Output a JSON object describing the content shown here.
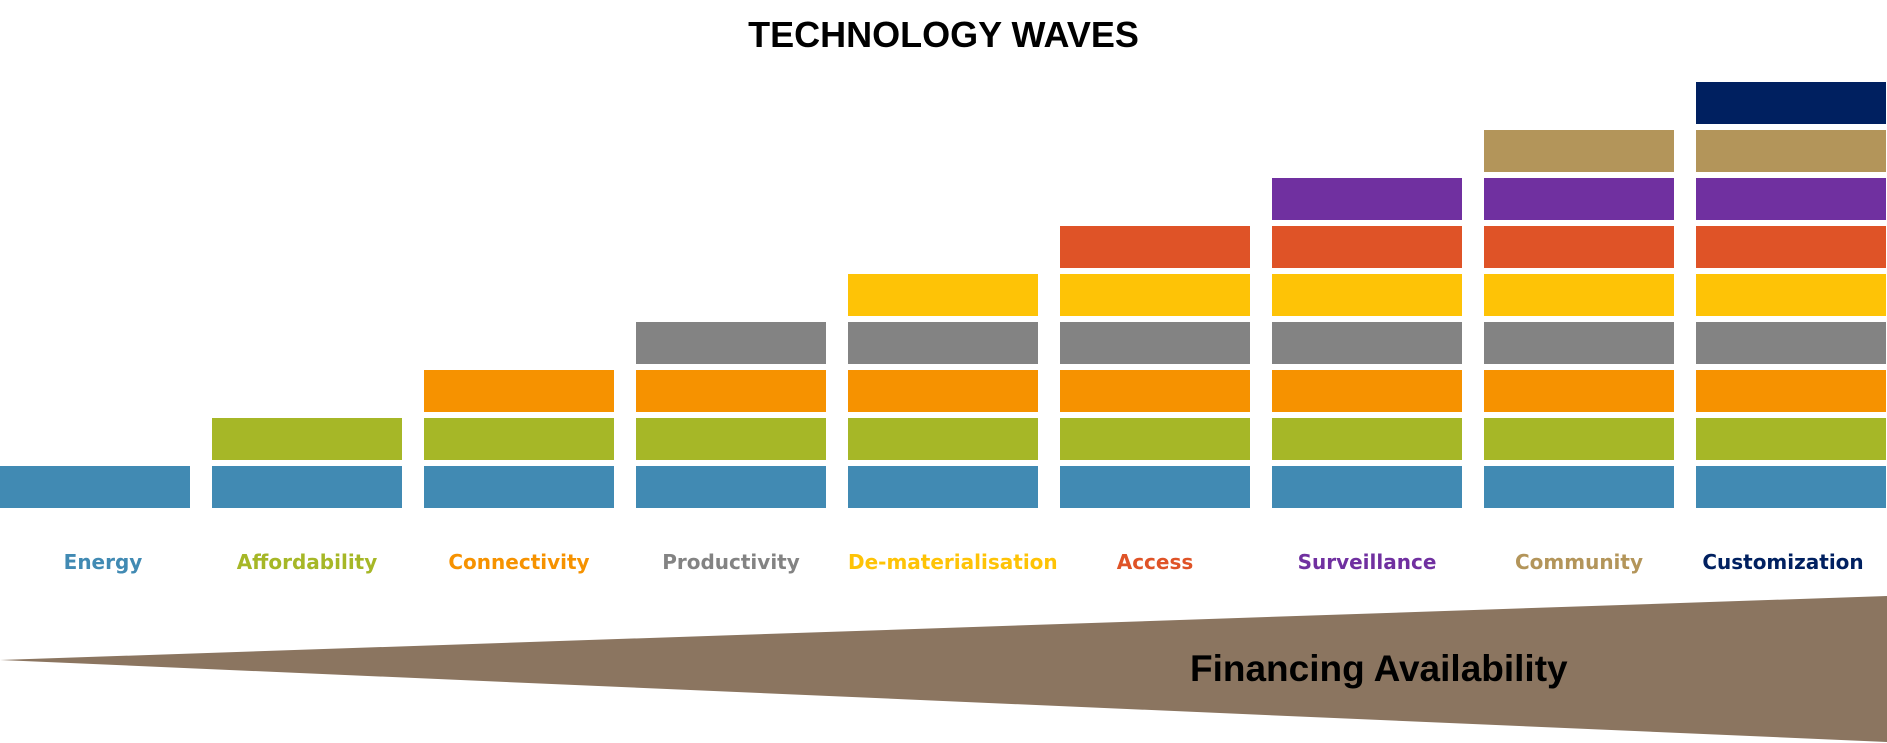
{
  "title": "TECHNOLOGY WAVES",
  "waves": [
    {
      "label": "Energy",
      "color": "#418AB3"
    },
    {
      "label": "Affordability",
      "color": "#A6B727"
    },
    {
      "label": "Connectivity",
      "color": "#F69200"
    },
    {
      "label": "Productivity",
      "color": "#838383"
    },
    {
      "label": "De-materialisation",
      "color": "#FEC306"
    },
    {
      "label": "Access",
      "color": "#DF5327"
    },
    {
      "label": "Surveillance",
      "color": "#7030A0"
    },
    {
      "label": "Community",
      "color": "#B3955A"
    },
    {
      "label": "Customization",
      "color": "#002060"
    }
  ],
  "financing": {
    "label": "Financing Availability",
    "color": "#8B7560"
  }
}
